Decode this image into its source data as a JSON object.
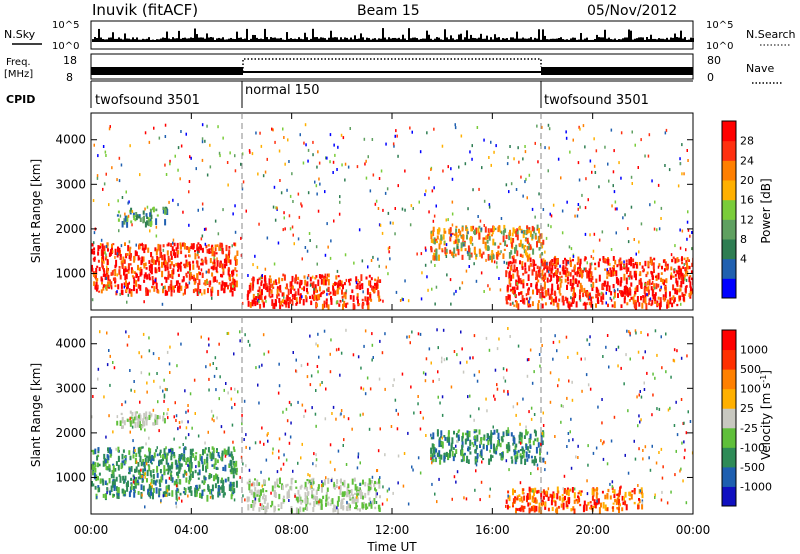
{
  "header": {
    "station": "Inuvik (fitACF)",
    "beam": "Beam 15",
    "date": "05/Nov/2012"
  },
  "top_panels": {
    "nsky_label": "N.Sky",
    "nsearch_label": "N.Search",
    "freq_label_1": "Freq.",
    "freq_label_2": "[MHz]",
    "nave_label": "Nave",
    "cpid_label": "CPID",
    "noise_ticks": [
      "10^5",
      "10^0"
    ],
    "freq_ticks": [
      "18",
      "8"
    ],
    "nave_ticks": [
      "80",
      "0"
    ],
    "cpid_segments": [
      {
        "name": "twofsound 3501",
        "start_hour": 0,
        "end_hour": 6
      },
      {
        "name": "normal 150",
        "start_hour": 6,
        "end_hour": 18
      },
      {
        "name": "twofsound 3501",
        "start_hour": 18,
        "end_hour": 24
      }
    ]
  },
  "power_panel": {
    "ylabel": "Slant Range [km]",
    "yticks": [
      "4000",
      "3000",
      "2000",
      "1000"
    ],
    "colorbar_label": "Power [dB]",
    "colorbar_ticks": [
      "28",
      "24",
      "20",
      "16",
      "12",
      "8",
      "4"
    ],
    "colors": [
      "#0000ff",
      "#2060b0",
      "#2e7d52",
      "#5fa060",
      "#7acc3a",
      "#ffb000",
      "#ff7f00",
      "#ff3010",
      "#ff0000"
    ]
  },
  "velocity_panel": {
    "ylabel": "Slant Range [km]",
    "yticks": [
      "4000",
      "3000",
      "2000",
      "1000"
    ],
    "colorbar_label": "Velocity [m s",
    "colorbar_label_sup": "-1",
    "colorbar_label_end": "]",
    "colorbar_ticks": [
      "1000",
      "500",
      "100",
      "25",
      "-25",
      "-100",
      "-500",
      "-1000"
    ],
    "colors": [
      "#1010c0",
      "#1e5fb0",
      "#2e8b57",
      "#5fbf3a",
      "#c8c8c0",
      "#ffb000",
      "#ff8000",
      "#ff3000",
      "#ff0000"
    ]
  },
  "x_axis": {
    "ticks": [
      "00:00",
      "04:00",
      "08:00",
      "12:00",
      "16:00",
      "20:00",
      "00:00"
    ],
    "label": "Time UT"
  },
  "chart_data": {
    "type": "heatmap",
    "x_range_hours": [
      0,
      24
    ],
    "y_range_km": [
      180,
      4600
    ],
    "mode_boundaries_hours": [
      6,
      18
    ],
    "power_regions": [
      {
        "t0": 0,
        "t1": 5.8,
        "r0": 600,
        "r1": 1700,
        "level": "red"
      },
      {
        "t0": 1,
        "t1": 3,
        "r0": 2150,
        "r1": 2500,
        "level": "green"
      },
      {
        "t0": 6.2,
        "t1": 11.5,
        "r0": 300,
        "r1": 1000,
        "level": "red"
      },
      {
        "t0": 13.5,
        "t1": 18,
        "r0": 1400,
        "r1": 2100,
        "level": "orange"
      },
      {
        "t0": 16.5,
        "t1": 24,
        "r0": 300,
        "r1": 1400,
        "level": "red"
      }
    ],
    "velocity_regions": [
      {
        "t0": 0,
        "t1": 5.8,
        "r0": 600,
        "r1": 1700,
        "level": "green"
      },
      {
        "t0": 1,
        "t1": 3,
        "r0": 2150,
        "r1": 2500,
        "level": "grey"
      },
      {
        "t0": 6.2,
        "t1": 11.5,
        "r0": 300,
        "r1": 1000,
        "level": "grey"
      },
      {
        "t0": 13.5,
        "t1": 18,
        "r0": 1400,
        "r1": 2100,
        "level": "green"
      },
      {
        "t0": 16.5,
        "t1": 22,
        "r0": 300,
        "r1": 800,
        "level": "orange"
      }
    ]
  }
}
